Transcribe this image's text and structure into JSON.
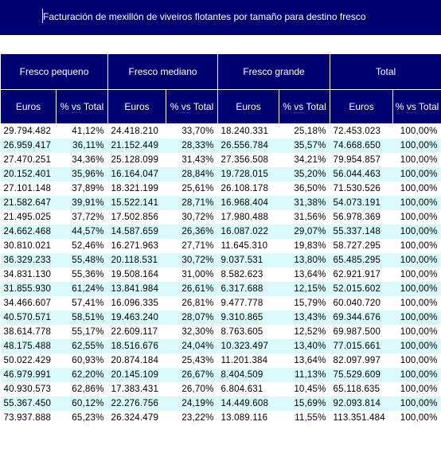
{
  "title": "Facturación de mexillón de viveiros flotantes por tamaño para destino fresco",
  "groups": [
    "Fresco pequeno",
    "Fresco mediano",
    "Fresco grande",
    "Total"
  ],
  "subheaders": {
    "euros": "Euros",
    "pct_prefix": "% ",
    "pct_mid": "vs",
    "pct_suffix": " Total"
  },
  "rows": [
    [
      "29.794.482",
      "41,12%",
      "24.418.210",
      "33,70%",
      "18.240.331",
      "25,18%",
      "72.453.023",
      "100,00%"
    ],
    [
      "26.959.417",
      "36,11%",
      "21.152.449",
      "28,33%",
      "26.556.784",
      "35,57%",
      "74.668.650",
      "100,00%"
    ],
    [
      "27.470.251",
      "34,36%",
      "25.128.099",
      "31,43%",
      "27.356.508",
      "34,21%",
      "79.954.857",
      "100,00%"
    ],
    [
      "20.152.401",
      "35,96%",
      "16.164.047",
      "28,84%",
      "19.728.015",
      "35,20%",
      "56.044.463",
      "100,00%"
    ],
    [
      "27.101.148",
      "37,89%",
      "18.321.199",
      "25,61%",
      "26.108.178",
      "36,50%",
      "71.530.526",
      "100,00%"
    ],
    [
      "21.582.647",
      "39,91%",
      "15.522.141",
      "28,71%",
      "16.968.404",
      "31,38%",
      "54.073.191",
      "100,00%"
    ],
    [
      "21.495.025",
      "37,72%",
      "17.502.856",
      "30,72%",
      "17.980.488",
      "31,56%",
      "56.978.369",
      "100,00%"
    ],
    [
      "24.662.468",
      "44,57%",
      "14.587.659",
      "26,36%",
      "16.087.022",
      "29,07%",
      "55.337.148",
      "100,00%"
    ],
    [
      "30.810.021",
      "52,46%",
      "16.271.963",
      "27,71%",
      "11.645.310",
      "19,83%",
      "58.727.295",
      "100,00%"
    ],
    [
      "36.329.233",
      "55,48%",
      "20.118.531",
      "30,72%",
      "9.037.531",
      "13,80%",
      "65.485.295",
      "100,00%"
    ],
    [
      "34.831.130",
      "55,36%",
      "19.508.164",
      "31,00%",
      "8.582.623",
      "13,64%",
      "62.921.917",
      "100,00%"
    ],
    [
      "31.855.930",
      "61,24%",
      "13.841.984",
      "26,61%",
      "6.317.688",
      "12,15%",
      "52.015.602",
      "100,00%"
    ],
    [
      "34.466.607",
      "57,41%",
      "16.096.335",
      "26,81%",
      "9.477.778",
      "15,79%",
      "60.040.720",
      "100,00%"
    ],
    [
      "40.570.571",
      "58,51%",
      "19.463.240",
      "28,07%",
      "9.310.865",
      "13,43%",
      "69.344.676",
      "100,00%"
    ],
    [
      "38.614.778",
      "55,17%",
      "22.609.117",
      "32,30%",
      "8.763.605",
      "12,52%",
      "69.987.500",
      "100,00%"
    ],
    [
      "48.175.488",
      "62,55%",
      "18.516.676",
      "24,04%",
      "10.323.497",
      "13,40%",
      "77.015.661",
      "100,00%"
    ],
    [
      "50.022.429",
      "60,93%",
      "20.874.184",
      "25,43%",
      "11.201.384",
      "13,64%",
      "82.097.997",
      "100,00%"
    ],
    [
      "46.979.991",
      "62,20%",
      "20.145.109",
      "26,67%",
      "8.404.509",
      "11,13%",
      "75.529.609",
      "100,00%"
    ],
    [
      "40.930.573",
      "62,86%",
      "17.383.431",
      "26,70%",
      "6.804.631",
      "10,45%",
      "65.118.635",
      "100,00%"
    ],
    [
      "55.367.450",
      "60,12%",
      "22.276.756",
      "24,19%",
      "14.449.608",
      "15,69%",
      "92.093.814",
      "100,00%"
    ],
    [
      "73.937.888",
      "65,23%",
      "26.324.479",
      "23,22%",
      "13.089.116",
      "11,55%",
      "113.351.484",
      "100,00%"
    ]
  ]
}
